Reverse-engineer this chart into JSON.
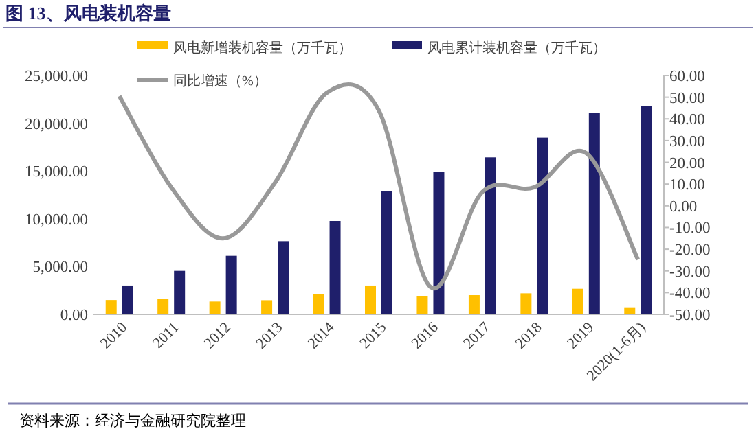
{
  "chart_data": {
    "type": "bar",
    "title": "图 13、风电装机容量",
    "categories": [
      "2010",
      "2011",
      "2012",
      "2013",
      "2014",
      "2015",
      "2016",
      "2017",
      "2018",
      "2019",
      "2020(1-6月)"
    ],
    "series": [
      {
        "name": "风电新增装机容量（万千瓦）",
        "color": "#ffc000",
        "values": [
          1500,
          1580,
          1340,
          1480,
          2150,
          3020,
          1920,
          2010,
          2200,
          2680,
          670
        ]
      },
      {
        "name": "风电累计装机容量（万千瓦）",
        "color": "#1f1f6b",
        "values": [
          3020,
          4550,
          6130,
          7660,
          9770,
          12930,
          14940,
          16430,
          18490,
          21120,
          21790
        ]
      },
      {
        "name": "同比增速（%）",
        "type": "line",
        "axis": "y2",
        "color": "#999999",
        "marker": "none",
        "values": [
          50.5,
          8.5,
          -15,
          10.6,
          52,
          44,
          -37.4,
          6.4,
          8.5,
          24.3,
          -24.8
        ]
      }
    ],
    "ylim": [
      0,
      25000
    ],
    "yticks": [
      {
        "value": 0,
        "label": "0.00"
      },
      {
        "value": 5000,
        "label": "5,000.00"
      },
      {
        "value": 10000,
        "label": "10,000.00"
      },
      {
        "value": 15000,
        "label": "15,000.00"
      },
      {
        "value": 20000,
        "label": "20,000.00"
      },
      {
        "value": 25000,
        "label": "25,000.00"
      }
    ],
    "y2lim": [
      -50,
      60
    ],
    "y2ticks": [
      {
        "value": -50,
        "label": "-50.00"
      },
      {
        "value": -40,
        "label": "-40.00"
      },
      {
        "value": -30,
        "label": "-30.00"
      },
      {
        "value": -20,
        "label": "-20.00"
      },
      {
        "value": -10,
        "label": "-10.00"
      },
      {
        "value": 0,
        "label": "0.00"
      },
      {
        "value": 10,
        "label": "10.00"
      },
      {
        "value": 20,
        "label": "20.00"
      },
      {
        "value": 30,
        "label": "30.00"
      },
      {
        "value": 40,
        "label": "40.00"
      },
      {
        "value": 50,
        "label": "50.00"
      },
      {
        "value": 60,
        "label": "60.00"
      }
    ],
    "grid": false,
    "legend": "top",
    "annotations": [
      "资料来源：经济与金融研究院整理"
    ]
  }
}
